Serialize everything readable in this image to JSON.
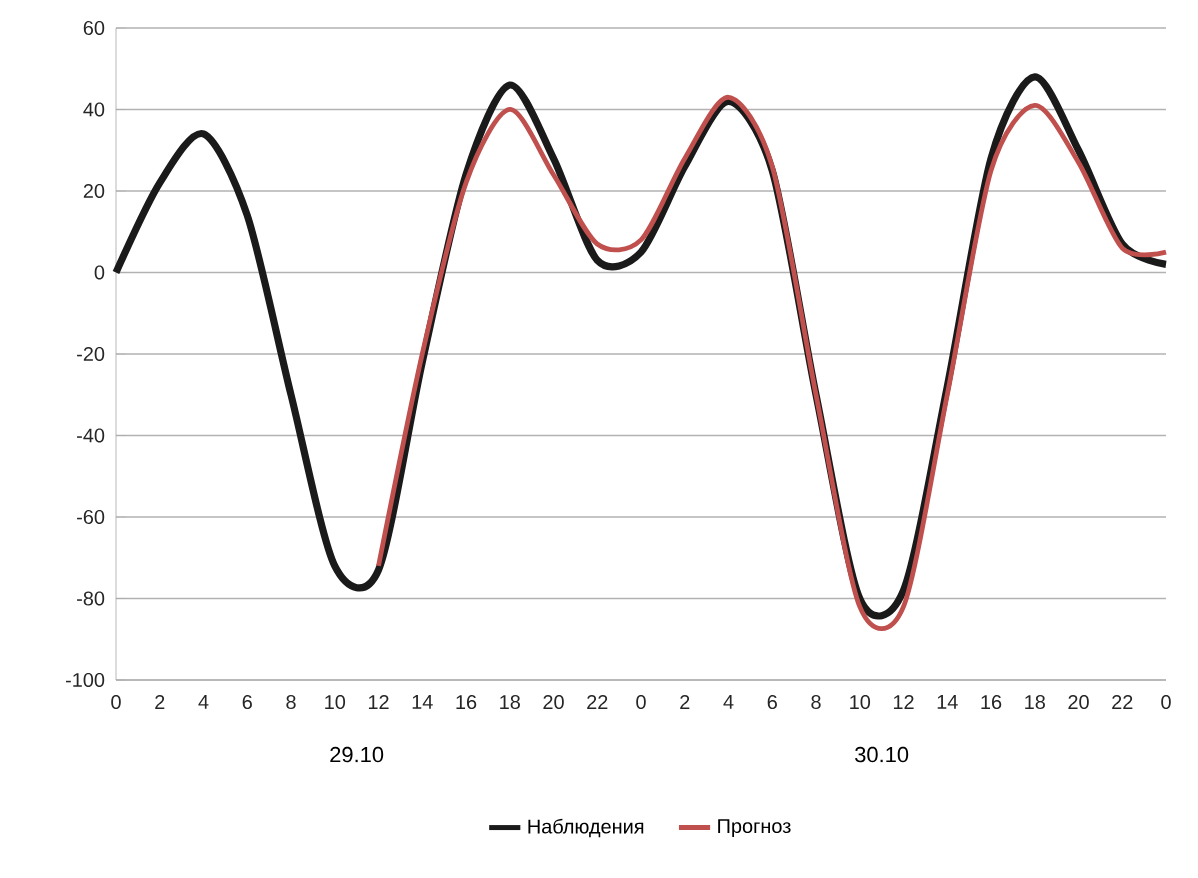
{
  "chart_data": {
    "type": "line",
    "categories": [
      "0",
      "2",
      "4",
      "6",
      "8",
      "10",
      "12",
      "14",
      "16",
      "18",
      "20",
      "22",
      "0",
      "2",
      "4",
      "6",
      "8",
      "10",
      "12",
      "14",
      "16",
      "18",
      "20",
      "22",
      "0"
    ],
    "series": [
      {
        "name": "Наблюдения",
        "color": "#1a1a1a",
        "values": [
          0,
          22,
          34,
          14,
          -30,
          -72,
          -73,
          -22,
          24,
          46,
          28,
          3,
          5,
          26,
          42,
          25,
          -30,
          -80,
          -78,
          -28,
          28,
          48,
          30,
          7,
          2
        ]
      },
      {
        "name": "Прогноз",
        "color": "#c0504d",
        "values": [
          null,
          null,
          null,
          null,
          null,
          null,
          -72,
          -20,
          22,
          40,
          24,
          7,
          8,
          28,
          43,
          26,
          -30,
          -82,
          -82,
          -30,
          25,
          41,
          27,
          6,
          5
        ]
      }
    ],
    "ylim": [
      -100,
      60
    ],
    "yticks": [
      -100,
      -80,
      -60,
      -40,
      -20,
      0,
      20,
      40,
      60
    ],
    "grid": "y",
    "legend": "bottom",
    "annotations": [
      "29.10",
      "30.10"
    ]
  }
}
